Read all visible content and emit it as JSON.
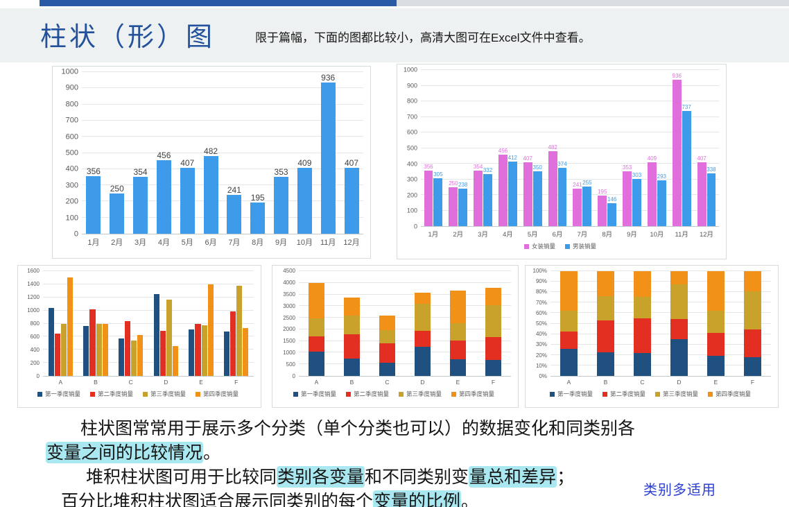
{
  "header": {
    "title": "柱状（形）图",
    "subtitle": "限于篇幅，下面的图都比较小，高清大图可在Excel文件中查看。"
  },
  "colors": {
    "title_blue": "#24519C",
    "topbar_blue": "#2A59A6",
    "topbar_gray": "#D9DEE0",
    "band": "#EDF1F1",
    "highlight": "#A9E8F0",
    "annot_blue": "#2B3FD6"
  },
  "chart_data": [
    {
      "id": "monthly-sales",
      "type": "bar",
      "categories": [
        "1月",
        "2月",
        "3月",
        "4月",
        "5月",
        "6月",
        "7月",
        "8月",
        "9月",
        "10月",
        "11月",
        "12月"
      ],
      "values": [
        356,
        250,
        354,
        456,
        407,
        482,
        241,
        195,
        353,
        409,
        936,
        407
      ],
      "bar_color": "#3E9BE9",
      "label_color": "#3f3f3f",
      "data_labels": true,
      "title": "",
      "xlabel": "",
      "ylabel": "",
      "ylim": [
        0,
        1000
      ],
      "ytick": 100,
      "grid": true,
      "legend": false
    },
    {
      "id": "gender-sales",
      "type": "grouped",
      "categories": [
        "1月",
        "2月",
        "3月",
        "4月",
        "5月",
        "6月",
        "7月",
        "8月",
        "9月",
        "10月",
        "11月",
        "12月"
      ],
      "series": [
        {
          "name": "女装销量",
          "color": "#E06FDC",
          "values": [
            356,
            250,
            354,
            456,
            407,
            482,
            241,
            195,
            353,
            409,
            936,
            407
          ]
        },
        {
          "name": "男装销量",
          "color": "#3D9CE9",
          "values": [
            305,
            238,
            332,
            412,
            350,
            374,
            255,
            146,
            303,
            293,
            737,
            338
          ]
        }
      ],
      "data_labels": true,
      "title": "",
      "xlabel": "",
      "ylabel": "",
      "ylim": [
        0,
        1000
      ],
      "ytick": 100,
      "grid": true,
      "legend": true,
      "legend_position": "bottom"
    },
    {
      "id": "quarter-grouped",
      "type": "grouped",
      "categories": [
        "A",
        "B",
        "C",
        "D",
        "E",
        "F"
      ],
      "series": [
        {
          "name": "第一季度销量",
          "color": "#20507F",
          "values": [
            1040,
            760,
            570,
            1250,
            715,
            680
          ]
        },
        {
          "name": "第二季度销量",
          "color": "#E32E22",
          "values": [
            645,
            1020,
            840,
            690,
            795,
            990
          ]
        },
        {
          "name": "第三季度销量",
          "color": "#C8A22B",
          "values": [
            795,
            800,
            545,
            1170,
            770,
            1375
          ]
        },
        {
          "name": "第四季度销量",
          "color": "#F29117",
          "values": [
            1500,
            795,
            625,
            455,
            1400,
            735
          ]
        }
      ],
      "data_labels": false,
      "title": "",
      "xlabel": "",
      "ylabel": "",
      "ylim": [
        0,
        1600
      ],
      "ytick": 200,
      "grid": true,
      "legend": true,
      "legend_position": "bottom"
    },
    {
      "id": "quarter-stacked",
      "type": "stacked",
      "categories": [
        "A",
        "B",
        "C",
        "D",
        "E",
        "F"
      ],
      "series": [
        {
          "name": "第一季度销量",
          "color": "#20507F",
          "values": [
            1040,
            760,
            570,
            1250,
            715,
            680
          ]
        },
        {
          "name": "第二季度销量",
          "color": "#E32E22",
          "values": [
            645,
            1020,
            840,
            690,
            795,
            990
          ]
        },
        {
          "name": "第三季度销量",
          "color": "#C8A22B",
          "values": [
            795,
            800,
            545,
            1170,
            770,
            1375
          ]
        },
        {
          "name": "第四季度销量",
          "color": "#F29117",
          "values": [
            1500,
            795,
            625,
            455,
            1400,
            735
          ]
        }
      ],
      "data_labels": false,
      "title": "",
      "xlabel": "",
      "ylabel": "",
      "ylim": [
        0,
        4500
      ],
      "ytick": 500,
      "grid": true,
      "legend": true,
      "legend_position": "bottom"
    },
    {
      "id": "quarter-percent",
      "type": "percent",
      "categories": [
        "A",
        "B",
        "C",
        "D",
        "E",
        "F"
      ],
      "series": [
        {
          "name": "第一季度销量",
          "color": "#20507F",
          "values": [
            1040,
            760,
            570,
            1250,
            715,
            680
          ]
        },
        {
          "name": "第二季度销量",
          "color": "#E32E22",
          "values": [
            645,
            1020,
            840,
            690,
            795,
            990
          ]
        },
        {
          "name": "第三季度销量",
          "color": "#C8A22B",
          "values": [
            795,
            800,
            545,
            1170,
            770,
            1375
          ]
        },
        {
          "name": "第四季度销量",
          "color": "#F29117",
          "values": [
            1500,
            795,
            625,
            455,
            1400,
            735
          ]
        }
      ],
      "data_labels": false,
      "title": "",
      "xlabel": "",
      "ylabel": "",
      "ylim": [
        0,
        100
      ],
      "ytick": 10,
      "grid": true,
      "legend": true,
      "legend_position": "bottom"
    }
  ],
  "notes": {
    "paragraphs": [
      {
        "indent": "a",
        "runs": [
          {
            "t": "柱状图常常用于展示多个分类（单个分类也可以）的数据变化和同类别各",
            "hl": false
          }
        ]
      },
      {
        "indent": null,
        "runs": [
          {
            "t": "变量之间的比较情况",
            "hl": true
          },
          {
            "t": "。",
            "hl": false
          }
        ]
      },
      {
        "indent": "b",
        "runs": [
          {
            "t": "堆积柱状图可用于比较同",
            "hl": false
          },
          {
            "t": "类别各变量",
            "hl": true
          },
          {
            "t": "和不同类别变",
            "hl": false
          },
          {
            "t": "量总和差异",
            "hl": true
          },
          {
            "t": "；",
            "hl": false
          }
        ]
      },
      {
        "indent": "c",
        "runs": [
          {
            "t": "百分比堆积柱状图适合展示同类别的每个",
            "hl": false
          },
          {
            "t": "变量的比例",
            "hl": true
          },
          {
            "t": "。",
            "hl": false
          }
        ]
      }
    ],
    "annotation": "类别多适用"
  }
}
